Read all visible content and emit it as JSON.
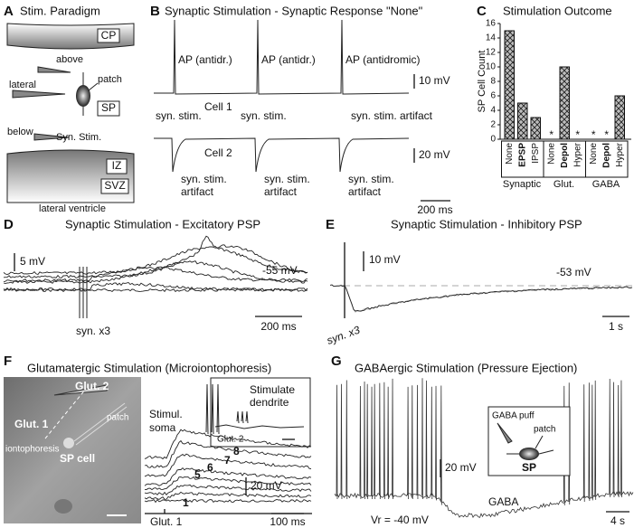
{
  "panel_a": {
    "letter": "A",
    "title": "Stim. Paradigm",
    "cp": "CP",
    "above": "above",
    "lateral": "lateral",
    "patch": "patch",
    "sp": "SP",
    "below": "below",
    "syn_stim": "Syn. Stim.",
    "iz": "IZ",
    "svz": "SVZ",
    "ventricle": "lateral ventricle"
  },
  "panel_b": {
    "letter": "B",
    "title": "Synaptic Stimulation - Synaptic Response \"None\"",
    "ap_labels": [
      "AP (antidr.)",
      "AP (antidr.)",
      "AP (antidromic)"
    ],
    "cell1": "Cell 1",
    "cell1_scale": "10 mV",
    "stim_labels": [
      "syn. stim.",
      "syn. stim.",
      "syn. stim. artifact"
    ],
    "cell2": "Cell 2",
    "cell2_scale": "20 mV",
    "artifact_labels": [
      [
        "syn. stim.",
        "artifact"
      ],
      [
        "syn. stim.",
        "artifact"
      ],
      [
        "syn. stim.",
        "artifact"
      ]
    ],
    "time_scale": "200 ms"
  },
  "chart_data": {
    "type": "bar",
    "letter": "C",
    "title": "Stimulation Outcome",
    "ylabel": "SP Cell Count",
    "ylim": [
      0,
      16
    ],
    "yticks": [
      0,
      2,
      4,
      6,
      8,
      10,
      12,
      14,
      16
    ],
    "color": "#9a9a9a",
    "zero_label": "*",
    "groups": [
      {
        "name": "Synaptic",
        "categories": [
          "None",
          "EPSP",
          "IPSP"
        ],
        "values": [
          15,
          5,
          3
        ],
        "bold": [
          false,
          true,
          false
        ]
      },
      {
        "name": "Glut.",
        "categories": [
          "None",
          "Depol",
          "Hyper"
        ],
        "values": [
          0,
          10,
          0
        ],
        "bold": [
          false,
          true,
          false
        ]
      },
      {
        "name": "GABA",
        "categories": [
          "None",
          "Depol",
          "Hyper"
        ],
        "values": [
          0,
          0,
          6
        ],
        "bold": [
          false,
          true,
          false
        ]
      }
    ]
  },
  "panel_d": {
    "letter": "D",
    "title": "Synaptic Stimulation - Excitatory PSP",
    "v_scale": "5 mV",
    "resting": "-55 mV",
    "stim": "syn. x3",
    "time_scale": "200 ms"
  },
  "panel_e": {
    "letter": "E",
    "title": "Synaptic Stimulation - Inhibitory PSP",
    "v_scale": "10 mV",
    "resting": "-53 mV",
    "stim": "syn. x3",
    "time_scale": "1 s"
  },
  "panel_f": {
    "letter": "F",
    "title": "Glutamatergic Stimulation (Microiontophoresis)",
    "glut2": "Glut. 2",
    "glut1": "Glut. 1",
    "patch": "patch",
    "iontophoresis": "iontophoresis",
    "sp_cell": "SP cell",
    "soma": [
      "Stimul.",
      "soma"
    ],
    "dendrite": [
      "Stimulate",
      "dendrite"
    ],
    "inset_glut": "Glut. 2",
    "v_scale": "20 mV",
    "trace_numbers": [
      "8",
      "7",
      "6",
      "5",
      "1"
    ],
    "stim": "Glut. 1",
    "time_scale": "100 ms"
  },
  "panel_g": {
    "letter": "G",
    "title": "GABAergic Stimulation (Pressure Ejection)",
    "puff": "GABA puff",
    "patch": "patch",
    "sp": "SP",
    "v_scale": "20 mV",
    "gaba": "GABA",
    "resting": "Vr = -40 mV",
    "time_scale": "4 s"
  }
}
